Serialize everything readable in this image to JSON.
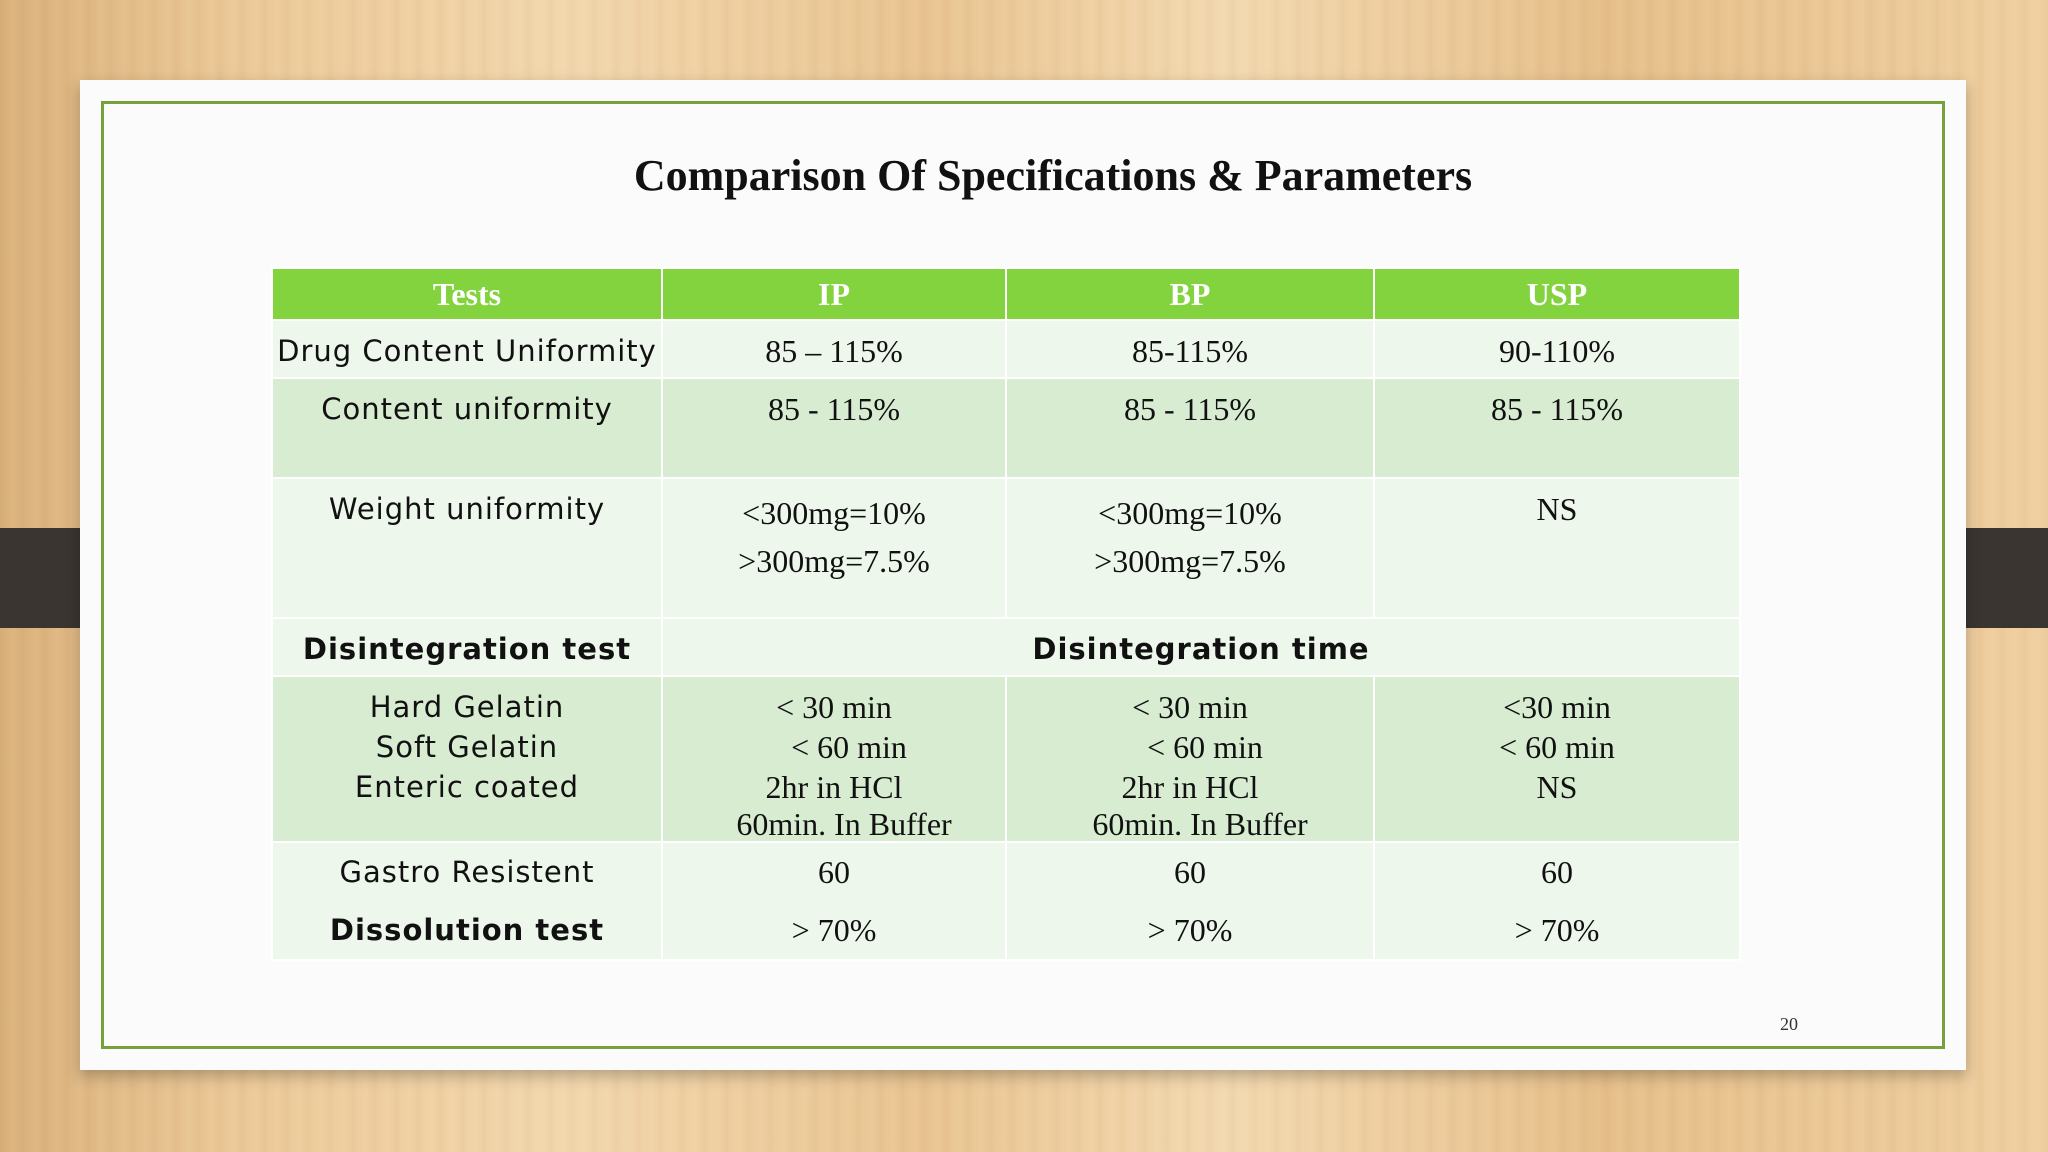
{
  "title": "Comparison Of Specifications & Parameters",
  "table": {
    "headers": [
      "Tests",
      "IP",
      "BP",
      "USP"
    ],
    "rows": [
      {
        "test": "Drug Content Uniformity",
        "ip": "85 – 115%",
        "bp": "85-115%",
        "usp": "90-110%"
      },
      {
        "test": "Content uniformity",
        "ip": "85 - 115%",
        "bp": "85 - 115%",
        "usp": "85 - 115%"
      },
      {
        "test": "Weight uniformity",
        "ip": [
          "<300mg=10%",
          ">300mg=7.5%"
        ],
        "bp": [
          "<300mg=10%",
          ">300mg=7.5%"
        ],
        "usp": "NS"
      },
      {
        "test": "Disintegration test",
        "span_label": "Disintegration time"
      },
      {
        "test": [
          "Hard Gelatin",
          "Soft Gelatin",
          "Enteric coated"
        ],
        "ip": [
          "< 30 min",
          "< 60 min",
          "2hr in HCl",
          "60min. In Buffer"
        ],
        "bp": [
          "< 30 min",
          "< 60 min",
          "2hr in HCl",
          "60min. In Buffer"
        ],
        "usp": [
          "<30 min",
          "< 60 min",
          "NS"
        ]
      },
      {
        "test": [
          "Gastro Resistent",
          "Dissolution test"
        ],
        "ip": [
          "60",
          "> 70%"
        ],
        "bp": [
          "60",
          "> 70%"
        ],
        "usp": [
          "60",
          "> 70%"
        ]
      }
    ]
  },
  "page_number": "20"
}
